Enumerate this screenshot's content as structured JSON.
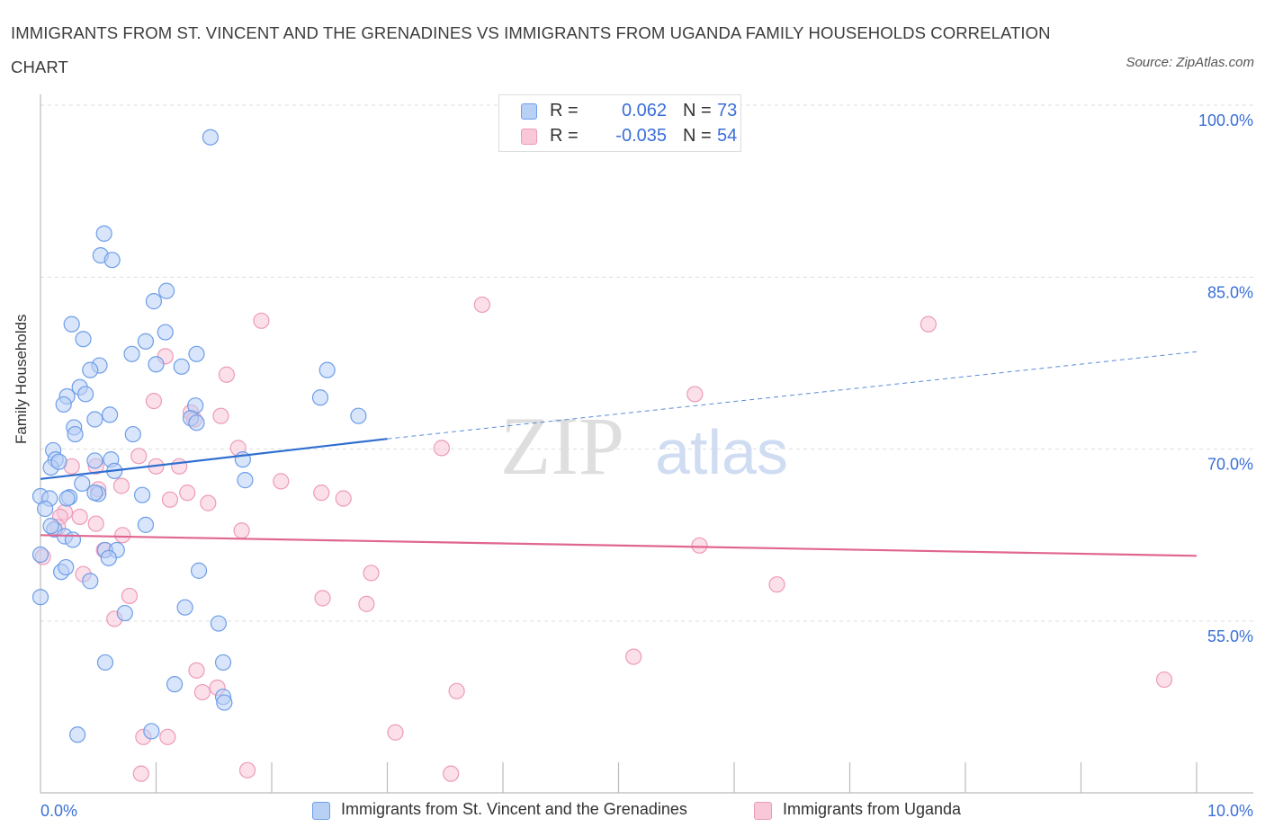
{
  "title": "IMMIGRANTS FROM ST. VINCENT AND THE GRENADINES VS IMMIGRANTS FROM UGANDA FAMILY HOUSEHOLDS CORRELATION CHART",
  "source": "Source: ZipAtlas.com",
  "watermark": {
    "zip": "ZIP",
    "atlas": "atlas"
  },
  "legend_top": {
    "rows": [
      {
        "r_label": "R =",
        "r_value": "0.062",
        "n_label": "N =",
        "n_value": "73",
        "color": "#6d9ee8"
      },
      {
        "r_label": "R =",
        "r_value": "-0.035",
        "n_label": "N =",
        "n_value": "54",
        "color": "#f09ab8"
      }
    ]
  },
  "colors": {
    "blue_fill": "#b9d0f5",
    "blue_stroke": "#6d9ee8",
    "blue_line": "#2f6fd0",
    "pink_fill": "#f8c7d8",
    "pink_stroke": "#ee9ab9",
    "pink_line": "#e06690",
    "grid": "#dddddd",
    "tick_label": "#3a6fd8"
  },
  "chart_data": {
    "type": "scatter",
    "title": "IMMIGRANTS FROM ST. VINCENT AND THE GRENADINES VS IMMIGRANTS FROM UGANDA FAMILY HOUSEHOLDS CORRELATION CHART",
    "xlabel": "",
    "ylabel": "Family Households",
    "xlim": [
      0,
      10
    ],
    "ylim": [
      40,
      100
    ],
    "x_tick_labels": [
      "0.0%",
      "10.0%"
    ],
    "y_ticks": [
      55,
      70,
      85,
      100
    ],
    "y_tick_labels": [
      "55.0%",
      "70.0%",
      "85.0%",
      "100.0%"
    ],
    "grid": true,
    "legend_position": "top-center",
    "series": [
      {
        "name": "Immigrants from St. Vincent and the Grenadines",
        "R": 0.062,
        "N": 73,
        "trend": {
          "x0": 0.0,
          "y0": 67.4,
          "x1": 3.0,
          "y1": 70.9,
          "x_dash_end": 10.0,
          "y_dash_end": 78.5
        },
        "points": [
          [
            1.47,
            97.2
          ],
          [
            0.55,
            88.8
          ],
          [
            0.52,
            86.9
          ],
          [
            0.62,
            86.5
          ],
          [
            1.09,
            83.8
          ],
          [
            0.98,
            82.9
          ],
          [
            0.27,
            80.9
          ],
          [
            0.37,
            79.6
          ],
          [
            1.08,
            80.2
          ],
          [
            0.91,
            79.4
          ],
          [
            0.79,
            78.3
          ],
          [
            1.35,
            78.3
          ],
          [
            0.51,
            77.3
          ],
          [
            0.43,
            76.9
          ],
          [
            1.0,
            77.4
          ],
          [
            1.22,
            77.2
          ],
          [
            2.48,
            76.9
          ],
          [
            0.23,
            74.6
          ],
          [
            0.34,
            75.4
          ],
          [
            0.39,
            74.8
          ],
          [
            2.42,
            74.5
          ],
          [
            1.34,
            73.8
          ],
          [
            0.2,
            73.9
          ],
          [
            0.6,
            73.0
          ],
          [
            0.47,
            72.6
          ],
          [
            1.3,
            72.7
          ],
          [
            2.75,
            72.9
          ],
          [
            1.35,
            72.3
          ],
          [
            0.29,
            71.9
          ],
          [
            0.3,
            71.3
          ],
          [
            0.8,
            71.3
          ],
          [
            0.11,
            69.9
          ],
          [
            0.13,
            69.1
          ],
          [
            0.09,
            68.4
          ],
          [
            0.47,
            69.0
          ],
          [
            0.61,
            69.1
          ],
          [
            1.75,
            69.1
          ],
          [
            0.64,
            68.1
          ],
          [
            1.77,
            67.3
          ],
          [
            0.36,
            67.0
          ],
          [
            0.0,
            65.9
          ],
          [
            0.08,
            65.7
          ],
          [
            0.25,
            65.8
          ],
          [
            0.5,
            66.1
          ],
          [
            0.23,
            65.7
          ],
          [
            0.88,
            66.0
          ],
          [
            0.04,
            64.8
          ],
          [
            0.12,
            63.0
          ],
          [
            0.91,
            63.4
          ],
          [
            0.21,
            62.4
          ],
          [
            0.28,
            62.1
          ],
          [
            0.56,
            61.2
          ],
          [
            0.66,
            61.2
          ],
          [
            0.59,
            60.5
          ],
          [
            0.0,
            60.8
          ],
          [
            0.18,
            59.3
          ],
          [
            0.22,
            59.7
          ],
          [
            1.37,
            59.4
          ],
          [
            0.43,
            58.5
          ],
          [
            0.0,
            57.1
          ],
          [
            1.25,
            56.2
          ],
          [
            0.73,
            55.7
          ],
          [
            1.54,
            54.8
          ],
          [
            0.56,
            51.4
          ],
          [
            1.58,
            51.4
          ],
          [
            1.16,
            49.5
          ],
          [
            1.58,
            48.4
          ],
          [
            1.59,
            47.9
          ],
          [
            0.32,
            45.1
          ],
          [
            0.96,
            45.4
          ],
          [
            0.47,
            66.2
          ],
          [
            0.16,
            68.9
          ],
          [
            0.09,
            63.3
          ]
        ]
      },
      {
        "name": "Immigrants from Uganda",
        "R": -0.035,
        "N": 54,
        "trend": {
          "x0": 0.0,
          "y0": 62.5,
          "x1": 10.0,
          "y1": 60.7
        },
        "points": [
          [
            3.82,
            82.6
          ],
          [
            1.91,
            81.2
          ],
          [
            7.68,
            80.9
          ],
          [
            1.08,
            78.1
          ],
          [
            1.61,
            76.5
          ],
          [
            5.66,
            74.8
          ],
          [
            0.98,
            74.2
          ],
          [
            1.3,
            73.2
          ],
          [
            1.56,
            72.9
          ],
          [
            1.33,
            72.6
          ],
          [
            1.71,
            70.1
          ],
          [
            3.47,
            70.1
          ],
          [
            0.85,
            69.4
          ],
          [
            0.27,
            68.5
          ],
          [
            0.48,
            68.5
          ],
          [
            1.0,
            68.5
          ],
          [
            1.2,
            68.5
          ],
          [
            2.08,
            67.2
          ],
          [
            0.7,
            66.8
          ],
          [
            0.5,
            66.5
          ],
          [
            1.27,
            66.2
          ],
          [
            2.43,
            66.2
          ],
          [
            2.62,
            65.7
          ],
          [
            1.12,
            65.6
          ],
          [
            1.45,
            65.3
          ],
          [
            0.21,
            64.5
          ],
          [
            0.34,
            64.1
          ],
          [
            0.17,
            64.1
          ],
          [
            0.48,
            63.5
          ],
          [
            0.15,
            63.2
          ],
          [
            1.74,
            62.9
          ],
          [
            0.71,
            62.5
          ],
          [
            5.7,
            61.6
          ],
          [
            0.55,
            61.2
          ],
          [
            0.02,
            60.6
          ],
          [
            2.86,
            59.2
          ],
          [
            0.37,
            59.1
          ],
          [
            6.37,
            58.2
          ],
          [
            0.77,
            57.2
          ],
          [
            2.44,
            57.0
          ],
          [
            2.82,
            56.5
          ],
          [
            0.64,
            55.2
          ],
          [
            5.13,
            51.9
          ],
          [
            1.35,
            50.7
          ],
          [
            1.53,
            49.2
          ],
          [
            1.4,
            48.8
          ],
          [
            3.6,
            48.9
          ],
          [
            9.72,
            49.9
          ],
          [
            3.07,
            45.3
          ],
          [
            0.89,
            44.9
          ],
          [
            1.1,
            44.9
          ],
          [
            0.87,
            41.7
          ],
          [
            1.79,
            42.0
          ],
          [
            3.55,
            41.7
          ]
        ]
      }
    ]
  },
  "legend_bottom": [
    {
      "label": "Immigrants from St. Vincent and the Grenadines"
    },
    {
      "label": "Immigrants from Uganda"
    }
  ]
}
